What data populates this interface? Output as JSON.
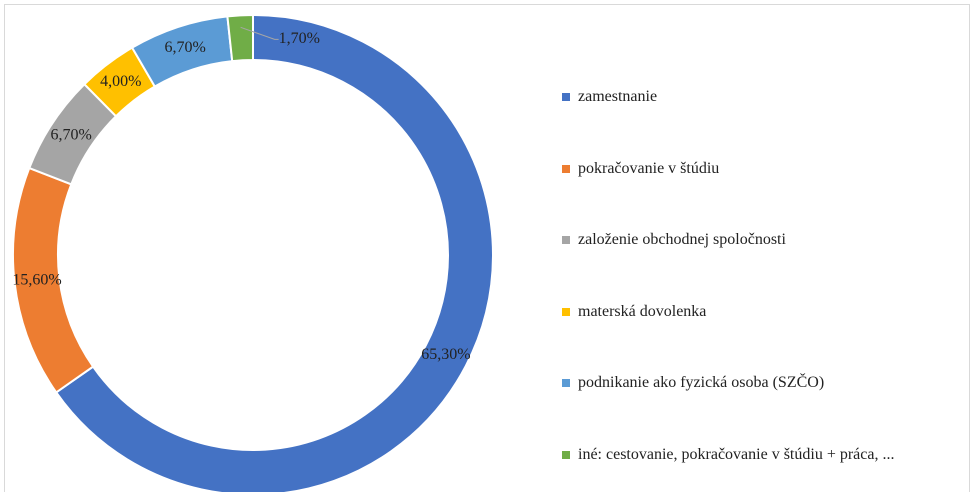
{
  "chart_data": {
    "type": "donut",
    "categories": [
      "zamestnanie",
      "pokračovanie v štúdiu",
      "založenie obchodnej spoločnosti",
      "materská dovolenka",
      "podnikanie ako fyzická osoba (SZČO)",
      "iné: cestovanie, pokračovanie v štúdiu + práca, ..."
    ],
    "values": [
      65.3,
      15.6,
      6.7,
      4.0,
      6.7,
      1.7
    ],
    "value_labels": [
      "65,30%",
      "15,60%",
      "6,70%",
      "4,00%",
      "6,70%",
      "1,70%"
    ],
    "colors": [
      "#4472c4",
      "#ed7d31",
      "#a5a5a5",
      "#ffc000",
      "#5b9bd5",
      "#70ad47"
    ],
    "legend": "right"
  }
}
